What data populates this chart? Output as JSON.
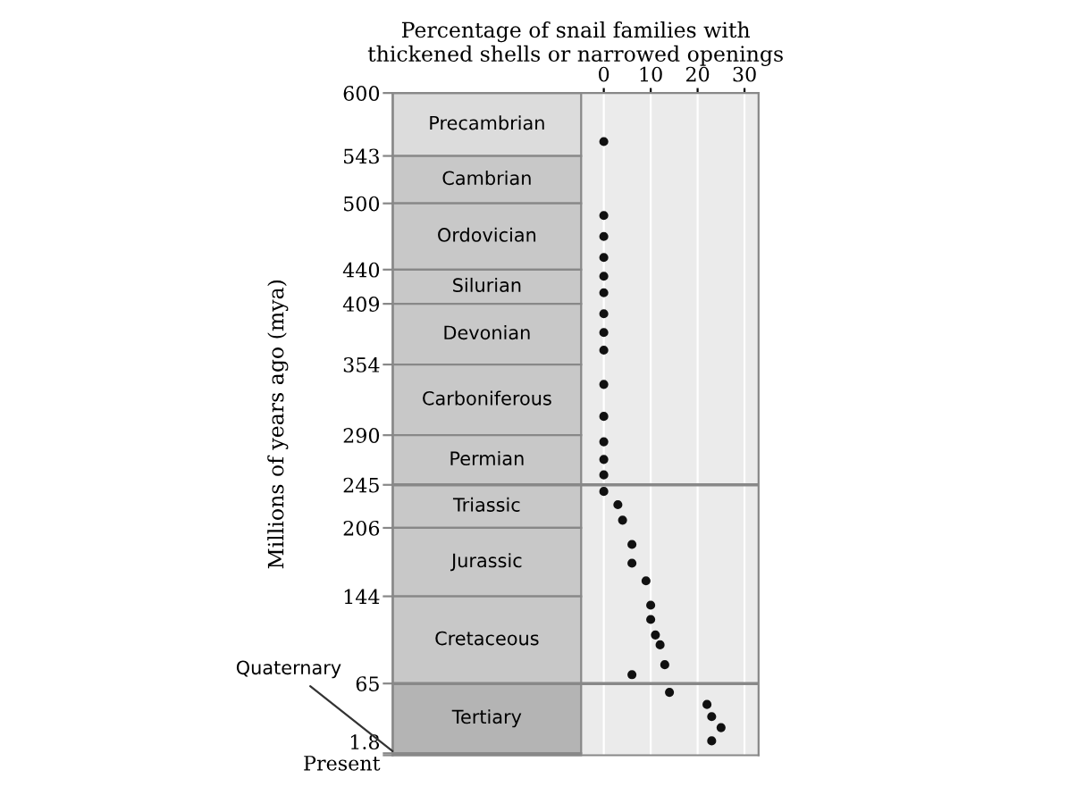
{
  "chart_data": {
    "type": "scatter",
    "xlabel": "Percentage of snail families with\nthickened shells or narrowed openings",
    "ylabel": "Millions of years ago (mya)",
    "series": [
      {
        "color": "#111111",
        "x": [
          0,
          0,
          0,
          0,
          0,
          0,
          0,
          0,
          0,
          0,
          0,
          0,
          0,
          0,
          0,
          3,
          4,
          6,
          6,
          9,
          10,
          10,
          11,
          12,
          13,
          6,
          14,
          22,
          23,
          25,
          23
        ],
        "values": [
          556,
          489,
          470,
          451,
          434,
          419,
          400,
          383,
          367,
          336,
          307,
          284,
          268,
          254,
          239,
          227,
          213,
          191,
          174,
          158,
          136,
          123,
          109,
          100,
          82,
          73,
          57,
          46,
          35,
          25,
          13
        ]
      }
    ],
    "xlim": [
      -45,
      33
    ],
    "xticks": [
      0,
      10,
      20,
      30
    ],
    "ylim": [
      0,
      600
    ],
    "yticks": [
      600,
      543,
      500,
      440,
      409,
      354,
      290,
      245,
      206,
      144,
      65,
      1.8,
      {
        "value": 0,
        "label": "Present"
      }
    ],
    "grid": "x",
    "marker": "circle",
    "bands": [
      {
        "axis": "y",
        "from": 600,
        "to": 543,
        "label": "Precambrian",
        "color": "#dcdcdc"
      },
      {
        "axis": "y",
        "from": 543,
        "to": 500,
        "label": "Cambrian",
        "color": "#c8c8c8"
      },
      {
        "axis": "y",
        "from": 500,
        "to": 440,
        "label": "Ordovician",
        "color": "#c8c8c8"
      },
      {
        "axis": "y",
        "from": 440,
        "to": 409,
        "label": "Silurian",
        "color": "#c8c8c8"
      },
      {
        "axis": "y",
        "from": 409,
        "to": 354,
        "label": "Devonian",
        "color": "#c8c8c8"
      },
      {
        "axis": "y",
        "from": 354,
        "to": 290,
        "label": "Carboniferous",
        "color": "#c8c8c8"
      },
      {
        "axis": "y",
        "from": 290,
        "to": 245,
        "label": "Permian",
        "color": "#c8c8c8"
      },
      {
        "axis": "y",
        "from": 245,
        "to": 206,
        "label": "Triassic",
        "color": "#c8c8c8"
      },
      {
        "axis": "y",
        "from": 206,
        "to": 144,
        "label": "Jurassic",
        "color": "#c8c8c8"
      },
      {
        "axis": "y",
        "from": 144,
        "to": 65,
        "label": "Cretaceous",
        "color": "#c8c8c8"
      },
      {
        "axis": "y",
        "from": 65,
        "to": 1.8,
        "label": "Tertiary",
        "color": "#b4b4b4"
      },
      {
        "axis": "y",
        "from": 1.8,
        "to": 0,
        "label": "Quaternary",
        "color": "#333333"
      }
    ],
    "ref_lines": [
      {
        "axis": "y",
        "value": 245,
        "color": "#888888"
      },
      {
        "axis": "y",
        "value": 65,
        "color": "#888888"
      }
    ]
  }
}
